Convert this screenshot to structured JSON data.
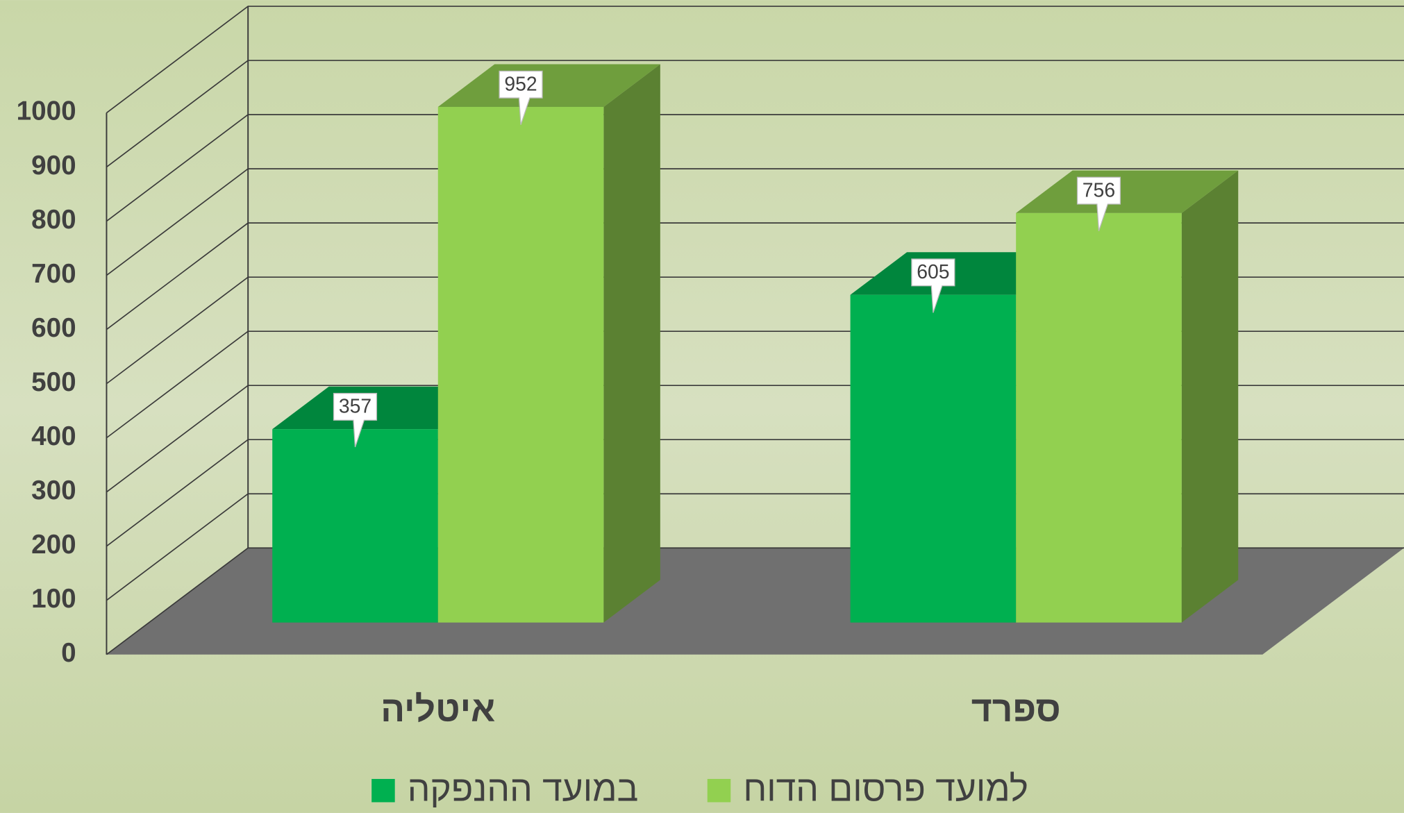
{
  "chart_data": {
    "type": "bar3d",
    "categories": [
      "איטליה",
      "ספרד"
    ],
    "series": [
      {
        "name": "במועד ההנפקה",
        "color": "#00b050",
        "values": [
          357,
          605
        ]
      },
      {
        "name": "למועד פרסום הדוח",
        "color": "#92d050",
        "values": [
          952,
          756
        ]
      }
    ],
    "ylim": [
      0,
      1000
    ],
    "yticks": [
      0,
      100,
      200,
      300,
      400,
      500,
      600,
      700,
      800,
      900,
      1000
    ],
    "grid": true,
    "legend": "bottom"
  }
}
